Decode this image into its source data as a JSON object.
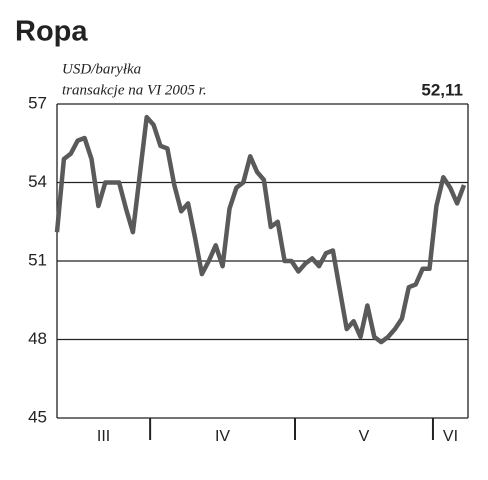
{
  "chart_data": {
    "type": "line",
    "title": "Ropa",
    "subtitle": [
      "USD/baryłka",
      "transakcje na VI 2005 r."
    ],
    "annotation": "52,11",
    "categories": [
      "III",
      "IV",
      "V",
      "VI"
    ],
    "values": [
      [
        52.1,
        54.9,
        55.1,
        55.6,
        55.7,
        54.9,
        53.1,
        54.0,
        54.0,
        54.0,
        53.0,
        52.1,
        54.3,
        56.5
      ],
      [
        56.2,
        55.4,
        55.3,
        53.9,
        52.9,
        53.2,
        51.9,
        50.5,
        51.0,
        51.6,
        50.8,
        53.0,
        53.8,
        54.0,
        55.0,
        54.4,
        54.1,
        52.3,
        52.5,
        51.0,
        51.0
      ],
      [
        50.6,
        50.9,
        51.1,
        50.8,
        51.3,
        51.4,
        49.9,
        48.4,
        48.7,
        48.1,
        49.3,
        48.1,
        47.9,
        48.1,
        48.4,
        48.8,
        50.0,
        50.1,
        50.7,
        50.7
      ],
      [
        53.1,
        54.2,
        53.8,
        53.2,
        53.9
      ]
    ],
    "color": "#5a5a5a",
    "ylim": [
      45,
      57
    ],
    "yticks": [
      45,
      48,
      51,
      54,
      57
    ],
    "grid": true
  }
}
